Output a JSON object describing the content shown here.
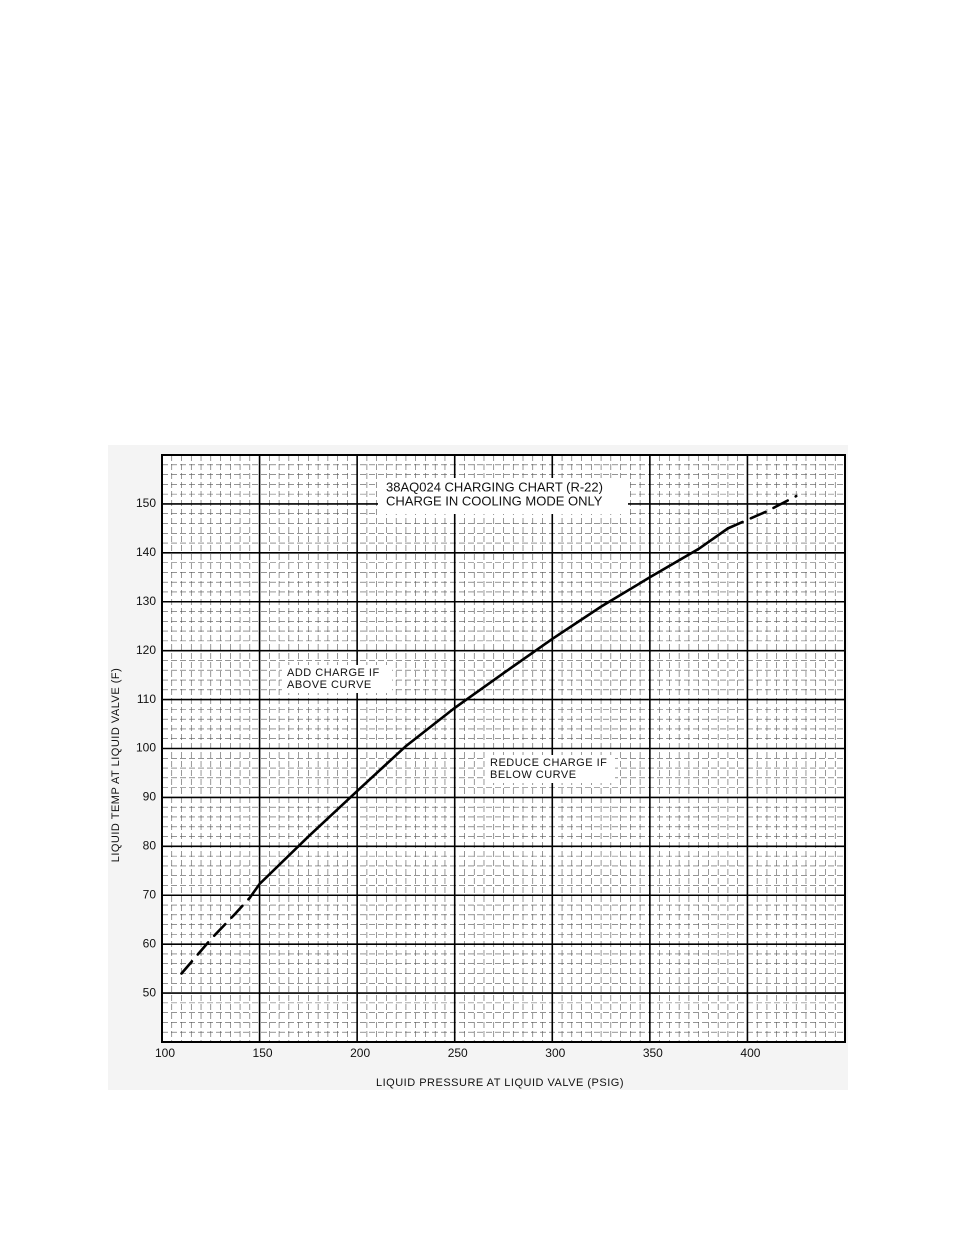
{
  "chart_data": {
    "type": "line",
    "title": [
      "38AQ024 CHARGING CHART (R-22)",
      "CHARGE IN COOLING MODE ONLY"
    ],
    "annotations": [
      [
        "ADD CHARGE IF",
        "ABOVE CURVE"
      ],
      [
        "REDUCE CHARGE IF",
        "BELOW CURVE"
      ]
    ],
    "x_label": "LIQUID PRESSURE AT LIQUID VALVE (PSIG)",
    "y_label": "LIQUID TEMP AT LIQUID VALVE (F)",
    "x": [
      110,
      125,
      137,
      145,
      150,
      175,
      200,
      225,
      250,
      275,
      300,
      325,
      350,
      375,
      390,
      410,
      425
    ],
    "series": [
      {
        "color": "#000000",
        "dashed": false,
        "values": [
          null,
          null,
          null,
          69.5,
          72.3,
          82,
          91.3,
          100.5,
          108.3,
          115.4,
          122.4,
          129,
          135,
          140.8,
          145,
          null,
          null
        ]
      },
      {
        "color": "#000000",
        "dashed": true,
        "values": [
          54,
          61,
          66,
          69.5,
          null,
          null,
          null,
          null,
          null,
          null,
          null,
          null,
          null,
          null,
          145,
          148.5,
          151.6
        ]
      }
    ],
    "xlim": [
      100,
      450
    ],
    "ylim": [
      40,
      160
    ],
    "xticks": [
      100,
      150,
      200,
      250,
      300,
      350,
      400
    ],
    "yticks": [
      50,
      60,
      70,
      80,
      90,
      100,
      110,
      120,
      130,
      140,
      150
    ],
    "grid": true
  }
}
